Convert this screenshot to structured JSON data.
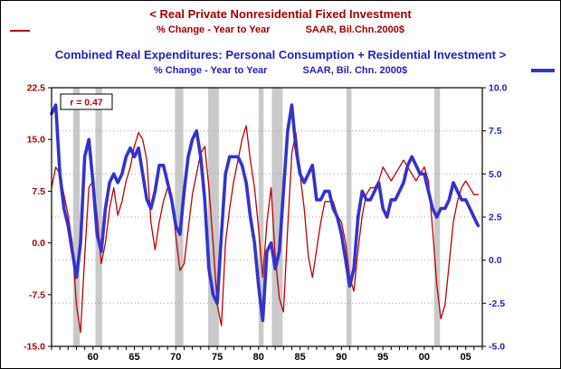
{
  "header": {
    "left_series_title": "< Real Private Nonresidential Fixed Investment",
    "left_series_subtitle": "% Change - Year to Year",
    "left_series_units": "SAAR, Bil.Chn.2000$",
    "right_series_title": "Combined Real Expenditures: Personal Consumption + Residential Investment >",
    "right_series_subtitle": "% Change - Year to Year",
    "right_series_units": "SAAR, Bil. Chn. 2000$"
  },
  "annotations": {
    "correlation": "r = 0.47"
  },
  "colors": {
    "title_red": "#a00000",
    "title_blue": "#2222bb",
    "line_red": "#c00000",
    "line_blue": "#3333cc",
    "axis_left": "#b00000",
    "axis_right": "#2222bb",
    "recession_band": "#c9c9c9",
    "gridline": "#9a9a9a"
  },
  "chart_data": {
    "type": "line",
    "title": "Real Private Nonresidential Fixed Investment vs Combined Real Expenditures (Personal Consumption + Residential Investment), % Change Year to Year",
    "x": [
      1955,
      1955.5,
      1956,
      1956.5,
      1957,
      1957.5,
      1958,
      1958.5,
      1959,
      1959.5,
      1960,
      1960.5,
      1961,
      1961.5,
      1962,
      1962.5,
      1963,
      1963.5,
      1964,
      1964.5,
      1965,
      1965.5,
      1966,
      1966.5,
      1967,
      1967.5,
      1968,
      1968.5,
      1969,
      1969.5,
      1970,
      1970.5,
      1971,
      1971.5,
      1972,
      1972.5,
      1973,
      1973.5,
      1974,
      1974.5,
      1975,
      1975.5,
      1976,
      1976.5,
      1977,
      1977.5,
      1978,
      1978.5,
      1979,
      1979.5,
      1980,
      1980.5,
      1981,
      1981.5,
      1982,
      1982.5,
      1983,
      1983.5,
      1984,
      1984.5,
      1985,
      1985.5,
      1986,
      1986.5,
      1987,
      1987.5,
      1988,
      1988.5,
      1989,
      1989.5,
      1990,
      1990.5,
      1991,
      1991.5,
      1992,
      1992.5,
      1993,
      1993.5,
      1994,
      1994.5,
      1995,
      1995.5,
      1996,
      1996.5,
      1997,
      1997.5,
      1998,
      1998.5,
      1999,
      1999.5,
      2000,
      2000.5,
      2001,
      2001.5,
      2002,
      2002.5,
      2003,
      2003.5,
      2004,
      2004.5,
      2005,
      2005.5,
      2006,
      2006.5
    ],
    "series": [
      {
        "id": "nonres-fixed-investment",
        "name": "Real Private Nonresidential Fixed Investment (% Change - Year to Year)",
        "axis": "left",
        "color": "#c00000",
        "stroke_width": 1.3,
        "values": [
          8,
          11,
          10,
          7,
          4,
          0,
          -9,
          -13,
          -2,
          8,
          9,
          4,
          -3,
          0,
          5,
          8,
          4,
          6,
          9,
          11,
          14,
          16,
          15,
          12,
          3,
          -1,
          3,
          6,
          8,
          7,
          1,
          -4,
          -3,
          2,
          7,
          10,
          13,
          14,
          8,
          0,
          -9,
          -12,
          0,
          5,
          9,
          12,
          15,
          17,
          12,
          8,
          2,
          -5,
          3,
          8,
          -2,
          -8,
          -10,
          2,
          13,
          16,
          10,
          5,
          -2,
          -5,
          -1,
          3,
          6,
          6,
          6,
          4,
          3,
          0,
          -5,
          -7,
          -1,
          4,
          7,
          8,
          8,
          9,
          11,
          10,
          9,
          10,
          11,
          12,
          11,
          10,
          9,
          10,
          11,
          9,
          2,
          -6,
          -11,
          -9,
          -3,
          3,
          6,
          8,
          9,
          8,
          7,
          7
        ]
      },
      {
        "id": "consumption-plus-residential",
        "name": "Combined Real Expenditures: Personal Consumption + Residential Investment (% Change - Year to Year)",
        "axis": "right",
        "color": "#3333cc",
        "stroke_width": 3.6,
        "values": [
          8.5,
          9,
          5,
          3,
          2,
          0.5,
          -1,
          1,
          6,
          7,
          4.5,
          1.5,
          0.5,
          3,
          4.5,
          5,
          4.5,
          5,
          6,
          6.5,
          6,
          6.5,
          5,
          3.5,
          3,
          4,
          5.5,
          5.5,
          4.5,
          3.5,
          2,
          1.5,
          4,
          6,
          7,
          7.5,
          6,
          3.5,
          -0.5,
          -2,
          -2.5,
          1.5,
          5,
          6,
          6,
          6,
          5.5,
          4.5,
          2.5,
          1,
          -1.5,
          -3.5,
          0.5,
          1,
          -0.5,
          0.5,
          4,
          7.5,
          9,
          6.5,
          5,
          4.5,
          5,
          5.5,
          3.5,
          3.5,
          4,
          4,
          3,
          2.5,
          1.5,
          0,
          -1.5,
          -0.5,
          2.5,
          4,
          3.5,
          3.5,
          4,
          4.5,
          3,
          2.5,
          3.5,
          3.5,
          4,
          4.5,
          5.5,
          6,
          5.5,
          5,
          5,
          4,
          3,
          2.5,
          3,
          3,
          3.5,
          4.5,
          4,
          3.5,
          3.5,
          3,
          2.5,
          2
        ]
      }
    ],
    "left_axis": {
      "min": -15,
      "max": 22.5,
      "ticks": [
        22.5,
        15.0,
        7.5,
        0.0,
        -7.5,
        -15.0
      ],
      "labels": [
        "22.5",
        "15.0",
        "7.5",
        "0.0",
        "-7.5",
        "-15.0"
      ]
    },
    "right_axis": {
      "min": -5,
      "max": 10,
      "ticks": [
        10.0,
        7.5,
        5.0,
        2.5,
        0.0,
        -2.5,
        -5.0
      ],
      "labels": [
        "10.0",
        "7.5",
        "5.0",
        "2.5",
        "0.0",
        "-2.5",
        "-5.0"
      ]
    },
    "x_axis": {
      "min": 1955,
      "max": 2007,
      "tick_labels": [
        {
          "x": 1960,
          "label": "60"
        },
        {
          "x": 1965,
          "label": "65"
        },
        {
          "x": 1970,
          "label": "70"
        },
        {
          "x": 1975,
          "label": "75"
        },
        {
          "x": 1980,
          "label": "80"
        },
        {
          "x": 1985,
          "label": "85"
        },
        {
          "x": 1990,
          "label": "90"
        },
        {
          "x": 1995,
          "label": "95"
        },
        {
          "x": 2000,
          "label": "00"
        },
        {
          "x": 2005,
          "label": "05"
        }
      ]
    },
    "recessions": [
      [
        1957.6,
        1958.4
      ],
      [
        1960.3,
        1961.1
      ],
      [
        1969.9,
        1970.9
      ],
      [
        1973.9,
        1975.2
      ],
      [
        1980.0,
        1980.6
      ],
      [
        1981.6,
        1982.9
      ],
      [
        1990.6,
        1991.2
      ],
      [
        2001.2,
        2001.9
      ]
    ],
    "grid": {
      "horizontal": "dotted",
      "at": "right_axis_ticks"
    },
    "legend_position": "in-title"
  }
}
